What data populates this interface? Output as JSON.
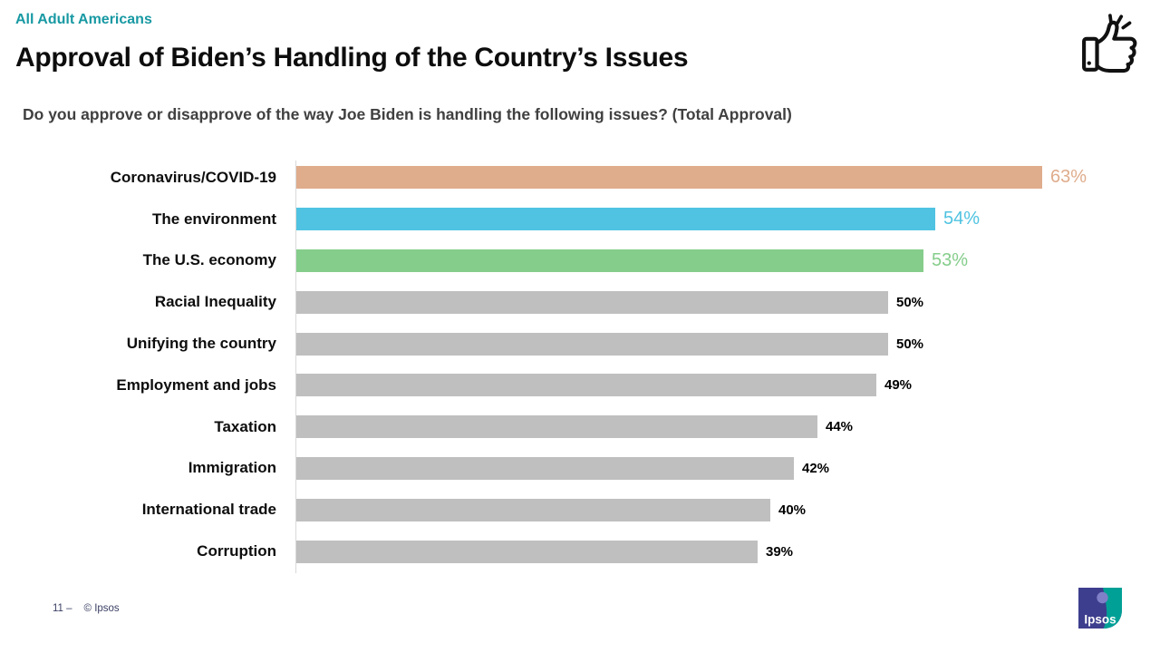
{
  "header": {
    "eyebrow": "All Adult Americans",
    "title": "Approval of Biden’s Handling of the Country’s Issues",
    "subtitle": "Do you approve or disapprove of the way Joe Biden is handling the following issues? (Total Approval)"
  },
  "footer": {
    "page_number": "11 –",
    "copyright": "© Ipsos"
  },
  "logo": {
    "text": "Ipsos",
    "blue": "#3E3E8E",
    "teal": "#00A096",
    "head": "#8080C8"
  },
  "icons": {
    "thumbs_up": "thumbs-up-celebration-icon"
  },
  "colors": {
    "eyebrow_teal": "#1899A3",
    "title_black": "#0d0d0d",
    "subtitle_gray": "#404040",
    "axis_gray": "#d9d9d9",
    "footer_navy": "#3A3F63"
  },
  "chart_data": {
    "type": "bar",
    "orientation": "horizontal",
    "title": "Approval of Biden’s Handling of the Country’s Issues",
    "question": "Do you approve or disapprove of the way Joe Biden is handling the following issues? (Total Approval)",
    "value_suffix": "%",
    "xlim": [
      0,
      70
    ],
    "grid": false,
    "legend": false,
    "categories": [
      "Coronavirus/COVID-19",
      "The environment",
      "The U.S. economy",
      "Racial Inequality",
      "Unifying the country",
      "Employment and jobs",
      "Taxation",
      "Immigration",
      "International trade",
      "Corruption"
    ],
    "values": [
      63,
      54,
      53,
      50,
      50,
      49,
      44,
      42,
      40,
      39
    ],
    "bar_colors": [
      "#DFAC8C",
      "#4FC3E1",
      "#85CD8B",
      "#BFBFBF",
      "#BFBFBF",
      "#BFBFBF",
      "#BFBFBF",
      "#BFBFBF",
      "#BFBFBF",
      "#BFBFBF"
    ],
    "value_label_colors": [
      "#DFAC8C",
      "#4FC3E1",
      "#85CD8B",
      "#000000",
      "#000000",
      "#000000",
      "#000000",
      "#000000",
      "#000000",
      "#000000"
    ],
    "highlighted": [
      true,
      true,
      true,
      false,
      false,
      false,
      false,
      false,
      false,
      false
    ]
  }
}
